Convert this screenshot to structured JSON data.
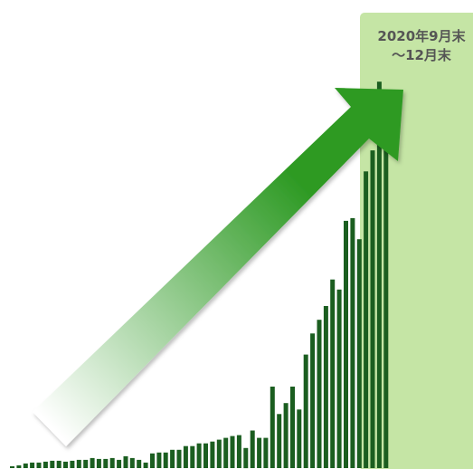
{
  "chart_data": {
    "type": "bar",
    "values": [
      2,
      3,
      5,
      6,
      6,
      7,
      8,
      8,
      7,
      8,
      9,
      9,
      11,
      10,
      10,
      11,
      9,
      13,
      11,
      9,
      6,
      16,
      17,
      17,
      20,
      20,
      24,
      24,
      27,
      27,
      29,
      31,
      33,
      35,
      36,
      22,
      41,
      33,
      33,
      89,
      59,
      71,
      89,
      64,
      124,
      147,
      162,
      177,
      206,
      195,
      270,
      273,
      250,
      324,
      347,
      422,
      408
    ],
    "highlight": {
      "label_line1": "2020年9月末",
      "label_line2": "～12月末",
      "start_index": 44,
      "color": "#c5e5a5"
    },
    "colors": {
      "bar": "#1b5e20",
      "arrow_dark": "#2e9a24",
      "arrow_light": "#ffffff",
      "label_text": "#555555"
    },
    "ylim": [
      0,
      440
    ]
  }
}
